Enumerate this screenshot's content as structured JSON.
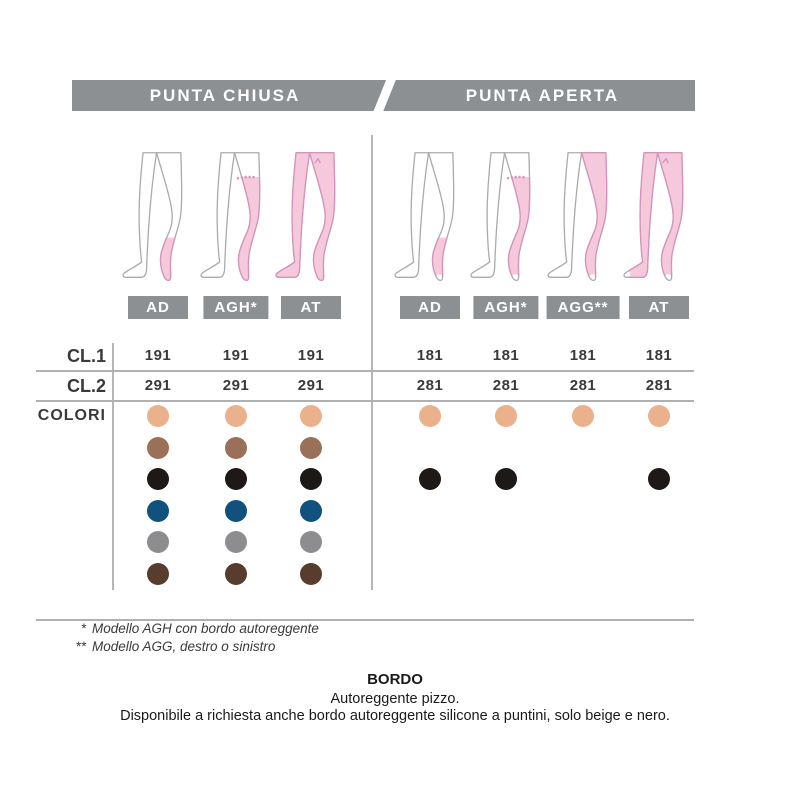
{
  "header": {
    "left_label": "PUNTA CHIUSA",
    "right_label": "PUNTA APERTA",
    "bar_color": "#8D9093"
  },
  "table": {
    "row_labels": {
      "cl1": "CL.1",
      "cl2": "CL.2",
      "colori": "COLORI"
    }
  },
  "sections": [
    {
      "name": "punta-chiusa",
      "toe": "closed",
      "columns": [
        {
          "model": "AD",
          "label": "AD",
          "cl1": "191",
          "cl2": "291",
          "colors": [
            "beige",
            "brown",
            "black",
            "blue",
            "gray",
            "darkbrown"
          ]
        },
        {
          "model": "AGH",
          "label": "AGH*",
          "cl1": "191",
          "cl2": "291",
          "colors": [
            "beige",
            "brown",
            "black",
            "blue",
            "gray",
            "darkbrown"
          ]
        },
        {
          "model": "AT",
          "label": "AT",
          "cl1": "191",
          "cl2": "291",
          "colors": [
            "beige",
            "brown",
            "black",
            "blue",
            "gray",
            "darkbrown"
          ]
        }
      ]
    },
    {
      "name": "punta-aperta",
      "toe": "open",
      "columns": [
        {
          "model": "AD",
          "label": "AD",
          "cl1": "181",
          "cl2": "281",
          "colors": [
            "beige",
            "black"
          ]
        },
        {
          "model": "AGH",
          "label": "AGH*",
          "cl1": "181",
          "cl2": "281",
          "colors": [
            "beige",
            "black"
          ]
        },
        {
          "model": "AGG",
          "label": "AGG**",
          "cl1": "181",
          "cl2": "281",
          "colors": [
            "beige"
          ]
        },
        {
          "model": "AT",
          "label": "AT",
          "cl1": "181",
          "cl2": "281",
          "colors": [
            "beige",
            "black"
          ]
        }
      ]
    }
  ],
  "color_rows": [
    "beige",
    "brown",
    "black",
    "blue",
    "gray",
    "darkbrown"
  ],
  "palette": {
    "beige": "#EAB18C",
    "brown": "#9A7058",
    "black": "#1E1916",
    "blue": "#11517E",
    "gray": "#8D8D8F",
    "darkbrown": "#583C2D"
  },
  "illustration": {
    "stocking_pink": "#F5C8DB",
    "stocking_outline": "#D592BA",
    "skin_outline": "#A9ABAE"
  },
  "footnotes": [
    {
      "marker": "*",
      "text": "Modello AGH con bordo autoreggente"
    },
    {
      "marker": "**",
      "text": "Modello AGG, destro o sinistro"
    }
  ],
  "bordo": {
    "title": "BORDO",
    "line1": "Autoreggente pizzo.",
    "line2": "Disponibile a richiesta anche bordo autoreggente silicone a puntini, solo beige e nero."
  }
}
